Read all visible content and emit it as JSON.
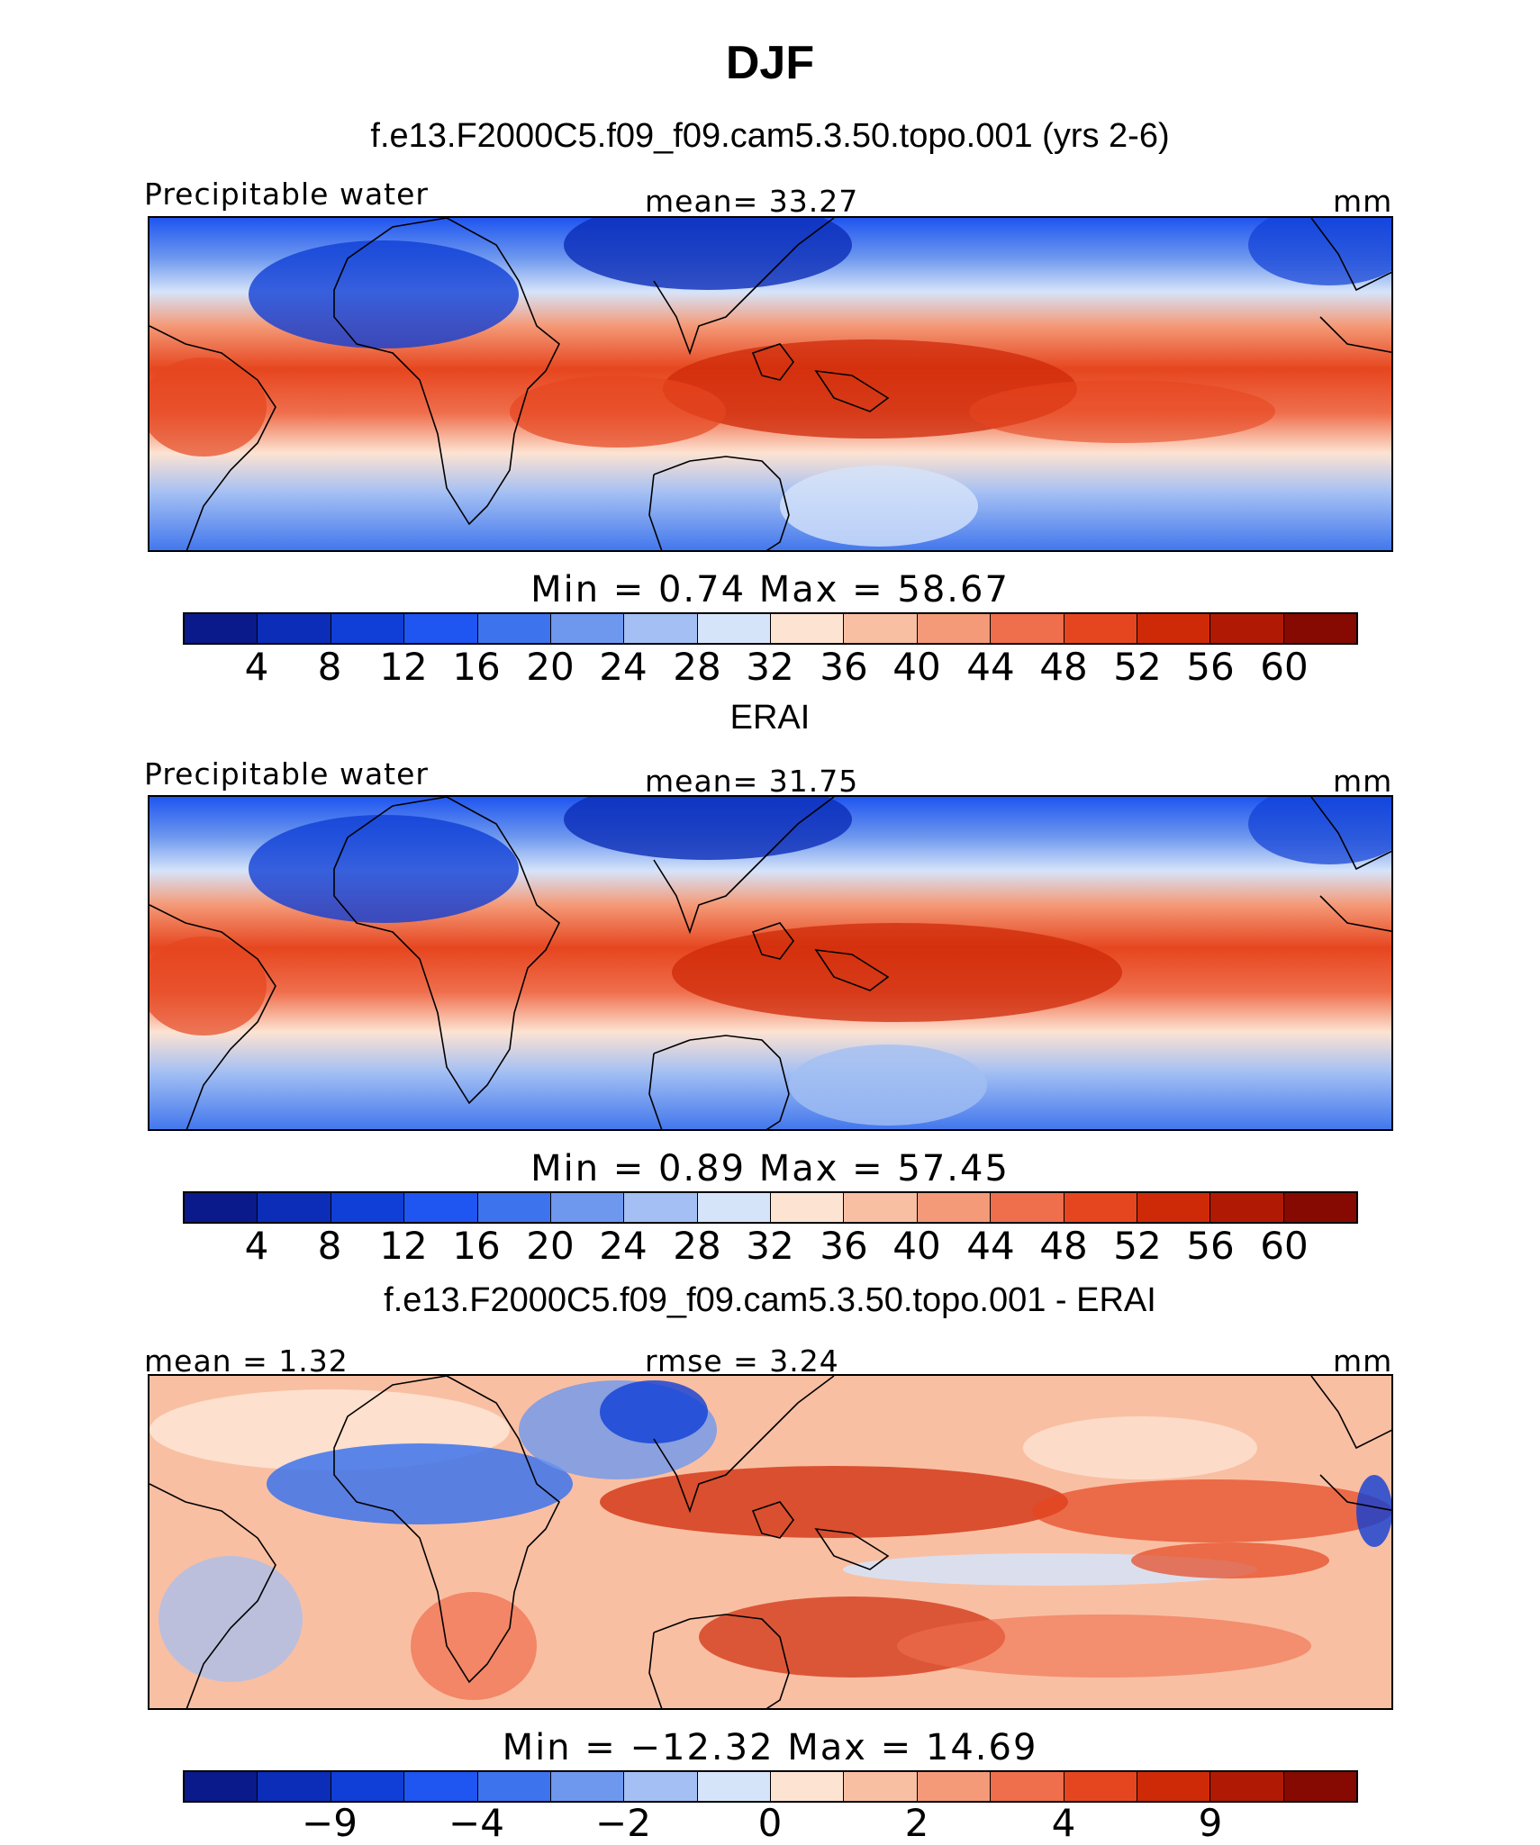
{
  "season_title": "DJF",
  "panels": [
    {
      "title": "f.e13.F2000C5.f09_f09.cam5.3.50.topo.001 (yrs 2-6)",
      "left_label": "Precipitable water",
      "center_label": "mean=   33.27",
      "right_label": "mm",
      "stats_label": "Min  =    0.74  Max  =   58.67",
      "colorbar_ticks": [
        "4",
        "8",
        "12",
        "16",
        "20",
        "24",
        "28",
        "32",
        "36",
        "40",
        "44",
        "48",
        "52",
        "56",
        "60"
      ]
    },
    {
      "title": "ERAI",
      "left_label": "Precipitable water",
      "center_label": "mean=   31.75",
      "right_label": "mm",
      "stats_label": "Min  =    0.89  Max  =   57.45",
      "colorbar_ticks": [
        "4",
        "8",
        "12",
        "16",
        "20",
        "24",
        "28",
        "32",
        "36",
        "40",
        "44",
        "48",
        "52",
        "56",
        "60"
      ]
    },
    {
      "title": "f.e13.F2000C5.f09_f09.cam5.3.50.topo.001 - ERAI",
      "left_label": "mean =    1.32",
      "center_label": "rmse =    3.24",
      "right_label": "mm",
      "stats_label": "Min  = −12.32  Max  =   14.69",
      "colorbar_ticks": [
        "−9",
        "−4",
        "−2",
        "0",
        "2",
        "4",
        "9"
      ]
    }
  ],
  "colorbar_colors": [
    "#0a1a8a",
    "#0b2db8",
    "#0f3fd6",
    "#1f55f0",
    "#3d73ec",
    "#6e98ee",
    "#a3bff3",
    "#d6e4fa",
    "#fde3d2",
    "#f9bfa3",
    "#f49a78",
    "#ef6e4c",
    "#e6461f",
    "#cf2a08",
    "#b01a05",
    "#860a02"
  ],
  "map_legend": {
    "ocean_band_colors": "see colorbar",
    "coastline_color": "#000000"
  }
}
